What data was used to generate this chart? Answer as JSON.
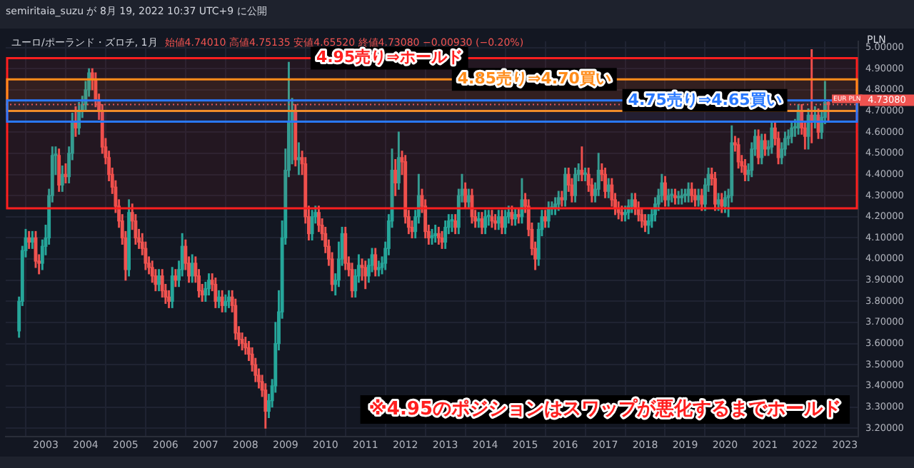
{
  "chart_data": {
    "type": "candlestick",
    "title": "ユーロ/ポーランド・ズロチ, 1月",
    "subtitle": "始値4.74010 高値4.75135 安値4.65520 終値4.73080 −0.00930 (−0.20%)",
    "ylabel": "PLN",
    "colors": [
      "#26a69a",
      "#ef5350"
    ],
    "xlim": [
      "2002-01",
      "2023-05"
    ],
    "xticks": [
      "2003",
      "2004",
      "2005",
      "2006",
      "2007",
      "2008",
      "2009",
      "2010",
      "2011",
      "2012",
      "2013",
      "2014",
      "2015",
      "2016",
      "2017",
      "2018",
      "2019",
      "2020",
      "2021",
      "2022",
      "2023"
    ],
    "ylim": [
      3.16,
      5.03
    ],
    "yticks": [
      {
        "value": 3.2,
        "label": "3.20000"
      },
      {
        "value": 3.3,
        "label": "3.30000"
      },
      {
        "value": 3.4,
        "label": "3.40000"
      },
      {
        "value": 3.5,
        "label": "3.50000"
      },
      {
        "value": 3.6,
        "label": "3.60000"
      },
      {
        "value": 3.7,
        "label": "3.70000"
      },
      {
        "value": 3.8,
        "label": "3.80000"
      },
      {
        "value": 3.9,
        "label": "3.90000"
      },
      {
        "value": 4.0,
        "label": "4.00000"
      },
      {
        "value": 4.1,
        "label": "4.10000"
      },
      {
        "value": 4.2,
        "label": "4.20000"
      },
      {
        "value": 4.3,
        "label": "4.30000"
      },
      {
        "value": 4.4,
        "label": "4.40000"
      },
      {
        "value": 4.5,
        "label": "4.50000"
      },
      {
        "value": 4.6,
        "label": "4.60000"
      },
      {
        "value": 4.7,
        "label": "4.70000"
      },
      {
        "value": 4.8,
        "label": "4.80000"
      },
      {
        "value": 4.9,
        "label": "4.90000"
      },
      {
        "value": 5.0,
        "label": "5.00000"
      }
    ],
    "grid": true,
    "bands": [
      {
        "axis": "y",
        "from": 4.24,
        "to": 4.95,
        "label": "4.95売り⇒ホールド",
        "color": "#ff1f1f"
      },
      {
        "axis": "y",
        "from": 4.7,
        "to": 4.85,
        "label": "4.85売り⇒4.70買い",
        "color": "#ff8c1a"
      },
      {
        "axis": "y",
        "from": 4.65,
        "to": 4.75,
        "label": "4.75売り⇒4.65買い",
        "color": "#2979ff"
      }
    ],
    "ref_lines": [
      {
        "axis": "y",
        "value": 4.7308,
        "label": "4.73080",
        "color": "#ef5350",
        "line_style": "dotted"
      }
    ],
    "annotations": [
      "semiritaia_suzu が 8月 19, 2022 10:37 UTC+9 に公開",
      "※4.95のポジションはスワップが悪化するまでホールド",
      "EUR PLN"
    ],
    "series": [
      {
        "x": [
          "2002-05",
          "2002-06",
          "2002-07",
          "2002-08",
          "2002-09",
          "2002-10",
          "2002-11",
          "2002-12",
          "2003-01",
          "2003-02",
          "2003-03",
          "2003-04",
          "2003-05",
          "2003-06",
          "2003-07",
          "2003-08",
          "2003-09",
          "2003-10",
          "2003-11",
          "2003-12",
          "2004-01",
          "2004-02",
          "2004-03",
          "2004-04",
          "2004-05",
          "2004-06",
          "2004-07",
          "2004-08",
          "2004-09",
          "2004-10",
          "2004-11",
          "2004-12",
          "2005-01",
          "2005-02",
          "2005-03",
          "2005-04",
          "2005-05",
          "2005-06",
          "2005-07",
          "2005-08",
          "2005-09",
          "2005-10",
          "2005-11",
          "2005-12",
          "2006-01",
          "2006-02",
          "2006-03",
          "2006-04",
          "2006-05",
          "2006-06",
          "2006-07",
          "2006-08",
          "2006-09",
          "2006-10",
          "2006-11",
          "2006-12",
          "2007-01",
          "2007-02",
          "2007-03",
          "2007-04",
          "2007-05",
          "2007-06",
          "2007-07",
          "2007-08",
          "2007-09",
          "2007-10",
          "2007-11",
          "2007-12",
          "2008-01",
          "2008-02",
          "2008-03",
          "2008-04",
          "2008-05",
          "2008-06",
          "2008-07",
          "2008-08",
          "2008-09",
          "2008-10",
          "2008-11",
          "2008-12",
          "2009-01",
          "2009-02",
          "2009-03",
          "2009-04",
          "2009-05",
          "2009-06",
          "2009-07",
          "2009-08",
          "2009-09",
          "2009-10",
          "2009-11",
          "2009-12",
          "2010-01",
          "2010-02",
          "2010-03",
          "2010-04",
          "2010-05",
          "2010-06",
          "2010-07",
          "2010-08",
          "2010-09",
          "2010-10",
          "2010-11",
          "2010-12",
          "2011-01",
          "2011-02",
          "2011-03",
          "2011-04",
          "2011-05",
          "2011-06",
          "2011-07",
          "2011-08",
          "2011-09",
          "2011-10",
          "2011-11",
          "2011-12",
          "2012-01",
          "2012-02",
          "2012-03",
          "2012-04",
          "2012-05",
          "2012-06",
          "2012-07",
          "2012-08",
          "2012-09",
          "2012-10",
          "2012-11",
          "2012-12",
          "2013-01",
          "2013-02",
          "2013-03",
          "2013-04",
          "2013-05",
          "2013-06",
          "2013-07",
          "2013-08",
          "2013-09",
          "2013-10",
          "2013-11",
          "2013-12",
          "2014-01",
          "2014-02",
          "2014-03",
          "2014-04",
          "2014-05",
          "2014-06",
          "2014-07",
          "2014-08",
          "2014-09",
          "2014-10",
          "2014-11",
          "2014-12",
          "2015-01",
          "2015-02",
          "2015-03",
          "2015-04",
          "2015-05",
          "2015-06",
          "2015-07",
          "2015-08",
          "2015-09",
          "2015-10",
          "2015-11",
          "2015-12",
          "2016-01",
          "2016-02",
          "2016-03",
          "2016-04",
          "2016-05",
          "2016-06",
          "2016-07",
          "2016-08",
          "2016-09",
          "2016-10",
          "2016-11",
          "2016-12",
          "2017-01",
          "2017-02",
          "2017-03",
          "2017-04",
          "2017-05",
          "2017-06",
          "2017-07",
          "2017-08",
          "2017-09",
          "2017-10",
          "2017-11",
          "2017-12",
          "2018-01",
          "2018-02",
          "2018-03",
          "2018-04",
          "2018-05",
          "2018-06",
          "2018-07",
          "2018-08",
          "2018-09",
          "2018-10",
          "2018-11",
          "2018-12",
          "2019-01",
          "2019-02",
          "2019-03",
          "2019-04",
          "2019-05",
          "2019-06",
          "2019-07",
          "2019-08",
          "2019-09",
          "2019-10",
          "2019-11",
          "2019-12",
          "2020-01",
          "2020-02",
          "2020-03",
          "2020-04",
          "2020-05",
          "2020-06",
          "2020-07",
          "2020-08",
          "2020-09",
          "2020-10",
          "2020-11",
          "2020-12",
          "2021-01",
          "2021-02",
          "2021-03",
          "2021-04",
          "2021-05",
          "2021-06",
          "2021-07",
          "2021-08",
          "2021-09",
          "2021-10",
          "2021-11",
          "2021-12",
          "2022-01",
          "2022-02",
          "2022-03",
          "2022-04",
          "2022-05",
          "2022-06",
          "2022-07",
          "2022-08"
        ],
        "ohlc": [
          [
            3.66,
            3.82,
            3.63,
            3.8
          ],
          [
            3.8,
            4.06,
            3.78,
            4.04
          ],
          [
            4.04,
            4.14,
            4.01,
            4.1
          ],
          [
            4.1,
            4.13,
            4.05,
            4.08
          ],
          [
            4.08,
            4.13,
            4.05,
            4.1
          ],
          [
            4.1,
            4.13,
            3.96,
            3.99
          ],
          [
            3.99,
            4.02,
            3.93,
            3.98
          ],
          [
            3.98,
            4.09,
            3.95,
            4.06
          ],
          [
            4.06,
            4.16,
            4.02,
            4.1
          ],
          [
            4.1,
            4.33,
            4.07,
            4.3
          ],
          [
            4.3,
            4.53,
            4.27,
            4.49
          ],
          [
            4.49,
            4.53,
            4.4,
            4.49
          ],
          [
            4.49,
            4.52,
            4.32,
            4.35
          ],
          [
            4.35,
            4.44,
            4.32,
            4.4
          ],
          [
            4.4,
            4.45,
            4.36,
            4.39
          ],
          [
            4.39,
            4.53,
            4.36,
            4.5
          ],
          [
            4.5,
            4.69,
            4.47,
            4.65
          ],
          [
            4.65,
            4.72,
            4.58,
            4.62
          ],
          [
            4.62,
            4.74,
            4.59,
            4.7
          ],
          [
            4.7,
            4.77,
            4.67,
            4.73
          ],
          [
            4.73,
            4.84,
            4.7,
            4.8
          ],
          [
            4.8,
            4.9,
            4.77,
            4.88
          ],
          [
            4.88,
            4.9,
            4.8,
            4.85
          ],
          [
            4.85,
            4.88,
            4.72,
            4.75
          ],
          [
            4.75,
            4.78,
            4.66,
            4.7
          ],
          [
            4.7,
            4.73,
            4.5,
            4.53
          ],
          [
            4.53,
            4.57,
            4.45,
            4.48
          ],
          [
            4.48,
            4.51,
            4.37,
            4.4
          ],
          [
            4.4,
            4.43,
            4.31,
            4.34
          ],
          [
            4.34,
            4.37,
            4.22,
            4.25
          ],
          [
            4.25,
            4.28,
            4.15,
            4.18
          ],
          [
            4.18,
            4.21,
            4.07,
            4.1
          ],
          [
            4.1,
            4.13,
            3.9,
            3.95
          ],
          [
            3.95,
            4.28,
            3.92,
            4.22
          ],
          [
            4.22,
            4.26,
            4.14,
            4.18
          ],
          [
            4.18,
            4.21,
            4.07,
            4.1
          ],
          [
            4.1,
            4.14,
            4.05,
            4.08
          ],
          [
            4.08,
            4.12,
            4.02,
            4.05
          ],
          [
            4.05,
            4.08,
            3.95,
            3.98
          ],
          [
            3.98,
            4.01,
            3.93,
            3.96
          ],
          [
            3.96,
            3.99,
            3.89,
            3.92
          ],
          [
            3.92,
            3.95,
            3.85,
            3.88
          ],
          [
            3.88,
            3.95,
            3.85,
            3.92
          ],
          [
            3.92,
            3.95,
            3.82,
            3.85
          ],
          [
            3.85,
            3.88,
            3.79,
            3.82
          ],
          [
            3.82,
            3.85,
            3.77,
            3.8
          ],
          [
            3.8,
            3.96,
            3.77,
            3.92
          ],
          [
            3.92,
            3.95,
            3.87,
            3.9
          ],
          [
            3.9,
            3.99,
            3.87,
            3.95
          ],
          [
            3.95,
            4.12,
            3.92,
            4.06
          ],
          [
            4.06,
            4.09,
            3.95,
            3.98
          ],
          [
            3.98,
            4.01,
            3.89,
            3.92
          ],
          [
            3.92,
            4.02,
            3.89,
            3.98
          ],
          [
            3.98,
            4.01,
            3.89,
            3.92
          ],
          [
            3.92,
            3.95,
            3.82,
            3.85
          ],
          [
            3.85,
            3.88,
            3.8,
            3.83
          ],
          [
            3.83,
            3.89,
            3.8,
            3.86
          ],
          [
            3.86,
            3.93,
            3.83,
            3.9
          ],
          [
            3.9,
            3.93,
            3.85,
            3.88
          ],
          [
            3.88,
            3.91,
            3.77,
            3.8
          ],
          [
            3.8,
            3.85,
            3.77,
            3.82
          ],
          [
            3.82,
            3.85,
            3.75,
            3.78
          ],
          [
            3.78,
            3.83,
            3.75,
            3.8
          ],
          [
            3.8,
            3.85,
            3.77,
            3.82
          ],
          [
            3.82,
            3.85,
            3.75,
            3.78
          ],
          [
            3.78,
            3.81,
            3.62,
            3.65
          ],
          [
            3.65,
            3.68,
            3.59,
            3.62
          ],
          [
            3.62,
            3.65,
            3.57,
            3.6
          ],
          [
            3.6,
            3.63,
            3.55,
            3.58
          ],
          [
            3.58,
            3.61,
            3.52,
            3.55
          ],
          [
            3.55,
            3.58,
            3.47,
            3.5
          ],
          [
            3.5,
            3.53,
            3.42,
            3.45
          ],
          [
            3.45,
            3.48,
            3.39,
            3.42
          ],
          [
            3.42,
            3.45,
            3.35,
            3.38
          ],
          [
            3.38,
            3.41,
            3.2,
            3.28
          ],
          [
            3.28,
            3.36,
            3.25,
            3.33
          ],
          [
            3.33,
            3.43,
            3.3,
            3.4
          ],
          [
            3.4,
            3.7,
            3.37,
            3.6
          ],
          [
            3.6,
            3.85,
            3.57,
            3.75
          ],
          [
            3.75,
            4.18,
            3.72,
            4.1
          ],
          [
            4.1,
            4.52,
            4.07,
            4.42
          ],
          [
            4.42,
            4.93,
            4.39,
            4.65
          ],
          [
            4.65,
            4.76,
            4.45,
            4.7
          ],
          [
            4.7,
            4.73,
            4.44,
            4.47
          ],
          [
            4.47,
            4.55,
            4.4,
            4.48
          ],
          [
            4.48,
            4.51,
            4.4,
            4.45
          ],
          [
            4.45,
            4.48,
            4.17,
            4.2
          ],
          [
            4.2,
            4.25,
            4.09,
            4.12
          ],
          [
            4.12,
            4.23,
            4.09,
            4.2
          ],
          [
            4.2,
            4.25,
            4.17,
            4.22
          ],
          [
            4.22,
            4.25,
            4.13,
            4.16
          ],
          [
            4.16,
            4.19,
            4.09,
            4.12
          ],
          [
            4.12,
            4.15,
            4.03,
            4.06
          ],
          [
            4.06,
            4.09,
            3.97,
            4.0
          ],
          [
            4.0,
            4.03,
            3.85,
            3.88
          ],
          [
            3.88,
            3.93,
            3.83,
            3.9
          ],
          [
            3.9,
            4.08,
            3.87,
            4.0
          ],
          [
            4.0,
            4.15,
            3.97,
            4.12
          ],
          [
            4.12,
            4.15,
            3.95,
            3.98
          ],
          [
            3.98,
            4.01,
            3.92,
            3.95
          ],
          [
            3.95,
            3.98,
            3.82,
            3.85
          ],
          [
            3.85,
            3.95,
            3.82,
            3.92
          ],
          [
            3.92,
            4.02,
            3.89,
            3.97
          ],
          [
            3.97,
            4.0,
            3.9,
            3.96
          ],
          [
            3.96,
            3.99,
            3.86,
            3.92
          ],
          [
            3.92,
            4.0,
            3.89,
            3.97
          ],
          [
            3.97,
            4.05,
            3.94,
            4.02
          ],
          [
            4.02,
            4.05,
            3.92,
            3.95
          ],
          [
            3.95,
            3.99,
            3.92,
            3.96
          ],
          [
            3.96,
            4.01,
            3.93,
            3.98
          ],
          [
            3.98,
            4.08,
            3.95,
            4.05
          ],
          [
            4.05,
            4.21,
            4.02,
            4.18
          ],
          [
            4.18,
            4.52,
            4.15,
            4.42
          ],
          [
            4.42,
            4.47,
            4.3,
            4.36
          ],
          [
            4.36,
            4.6,
            4.33,
            4.48
          ],
          [
            4.48,
            4.51,
            4.4,
            4.46
          ],
          [
            4.46,
            4.49,
            4.17,
            4.2
          ],
          [
            4.2,
            4.23,
            4.12,
            4.15
          ],
          [
            4.15,
            4.18,
            4.1,
            4.13
          ],
          [
            4.13,
            4.23,
            4.1,
            4.2
          ],
          [
            4.2,
            4.4,
            4.17,
            4.3
          ],
          [
            4.3,
            4.33,
            4.22,
            4.25
          ],
          [
            4.25,
            4.28,
            4.1,
            4.13
          ],
          [
            4.13,
            4.16,
            4.07,
            4.1
          ],
          [
            4.1,
            4.14,
            4.07,
            4.11
          ],
          [
            4.11,
            4.16,
            4.08,
            4.12
          ],
          [
            4.12,
            4.15,
            4.07,
            4.1
          ],
          [
            4.1,
            4.13,
            4.05,
            4.08
          ],
          [
            4.08,
            4.18,
            4.05,
            4.15
          ],
          [
            4.15,
            4.21,
            4.12,
            4.18
          ],
          [
            4.18,
            4.21,
            4.13,
            4.18
          ],
          [
            4.18,
            4.21,
            4.12,
            4.15
          ],
          [
            4.15,
            4.33,
            4.12,
            4.3
          ],
          [
            4.3,
            4.4,
            4.27,
            4.33
          ],
          [
            4.33,
            4.36,
            4.24,
            4.27
          ],
          [
            4.27,
            4.33,
            4.24,
            4.3
          ],
          [
            4.3,
            4.33,
            4.17,
            4.2
          ],
          [
            4.2,
            4.23,
            4.15,
            4.18
          ],
          [
            4.18,
            4.22,
            4.15,
            4.19
          ],
          [
            4.19,
            4.22,
            4.12,
            4.15
          ],
          [
            4.15,
            4.23,
            4.12,
            4.2
          ],
          [
            4.2,
            4.23,
            4.16,
            4.2
          ],
          [
            4.2,
            4.23,
            4.15,
            4.18
          ],
          [
            4.18,
            4.21,
            4.14,
            4.17
          ],
          [
            4.17,
            4.23,
            4.14,
            4.2
          ],
          [
            4.2,
            4.23,
            4.12,
            4.15
          ],
          [
            4.15,
            4.23,
            4.12,
            4.2
          ],
          [
            4.2,
            4.25,
            4.17,
            4.22
          ],
          [
            4.22,
            4.25,
            4.16,
            4.19
          ],
          [
            4.19,
            4.24,
            4.16,
            4.21
          ],
          [
            4.21,
            4.24,
            4.17,
            4.2
          ],
          [
            4.2,
            4.38,
            4.17,
            4.28
          ],
          [
            4.28,
            4.31,
            4.22,
            4.25
          ],
          [
            4.25,
            4.28,
            4.11,
            4.14
          ],
          [
            4.14,
            4.17,
            4.02,
            4.05
          ],
          [
            4.05,
            4.08,
            3.95,
            4.0
          ],
          [
            4.0,
            4.17,
            3.97,
            4.14
          ],
          [
            4.14,
            4.23,
            4.11,
            4.2
          ],
          [
            4.2,
            4.23,
            4.15,
            4.18
          ],
          [
            4.18,
            4.27,
            4.15,
            4.24
          ],
          [
            4.24,
            4.27,
            4.21,
            4.24
          ],
          [
            4.24,
            4.29,
            4.21,
            4.26
          ],
          [
            4.26,
            4.32,
            4.23,
            4.29
          ],
          [
            4.29,
            4.32,
            4.25,
            4.28
          ],
          [
            4.28,
            4.43,
            4.25,
            4.4
          ],
          [
            4.4,
            4.43,
            4.32,
            4.35
          ],
          [
            4.35,
            4.38,
            4.27,
            4.3
          ],
          [
            4.3,
            4.43,
            4.27,
            4.4
          ],
          [
            4.4,
            4.45,
            4.37,
            4.42
          ],
          [
            4.42,
            4.53,
            4.37,
            4.4
          ],
          [
            4.4,
            4.43,
            4.37,
            4.4
          ],
          [
            4.4,
            4.43,
            4.32,
            4.35
          ],
          [
            4.35,
            4.38,
            4.27,
            4.3
          ],
          [
            4.3,
            4.36,
            4.27,
            4.33
          ],
          [
            4.33,
            4.5,
            4.3,
            4.42
          ],
          [
            4.42,
            4.45,
            4.37,
            4.4
          ],
          [
            4.4,
            4.43,
            4.29,
            4.32
          ],
          [
            4.32,
            4.38,
            4.29,
            4.35
          ],
          [
            4.35,
            4.38,
            4.25,
            4.28
          ],
          [
            4.28,
            4.31,
            4.21,
            4.24
          ],
          [
            4.24,
            4.27,
            4.19,
            4.22
          ],
          [
            4.22,
            4.25,
            4.18,
            4.21
          ],
          [
            4.21,
            4.25,
            4.18,
            4.22
          ],
          [
            4.22,
            4.28,
            4.19,
            4.25
          ],
          [
            4.25,
            4.31,
            4.22,
            4.28
          ],
          [
            4.28,
            4.31,
            4.21,
            4.24
          ],
          [
            4.24,
            4.27,
            4.18,
            4.21
          ],
          [
            4.21,
            4.24,
            4.15,
            4.18
          ],
          [
            4.18,
            4.21,
            4.13,
            4.16
          ],
          [
            4.16,
            4.21,
            4.12,
            4.18
          ],
          [
            4.18,
            4.24,
            4.15,
            4.21
          ],
          [
            4.21,
            4.29,
            4.18,
            4.26
          ],
          [
            4.26,
            4.33,
            4.23,
            4.3
          ],
          [
            4.3,
            4.4,
            4.27,
            4.36
          ],
          [
            4.36,
            4.39,
            4.25,
            4.28
          ],
          [
            4.28,
            4.33,
            4.25,
            4.3
          ],
          [
            4.3,
            4.33,
            4.27,
            4.3
          ],
          [
            4.3,
            4.33,
            4.26,
            4.29
          ],
          [
            4.29,
            4.32,
            4.26,
            4.29
          ],
          [
            4.29,
            4.33,
            4.26,
            4.3
          ],
          [
            4.3,
            4.33,
            4.27,
            4.3
          ],
          [
            4.3,
            4.36,
            4.27,
            4.33
          ],
          [
            4.33,
            4.36,
            4.27,
            4.3
          ],
          [
            4.3,
            4.33,
            4.25,
            4.28
          ],
          [
            4.28,
            4.33,
            4.25,
            4.3
          ],
          [
            4.3,
            4.33,
            4.23,
            4.26
          ],
          [
            4.26,
            4.38,
            4.23,
            4.35
          ],
          [
            4.35,
            4.43,
            4.32,
            4.4
          ],
          [
            4.4,
            4.43,
            4.35,
            4.38
          ],
          [
            4.38,
            4.41,
            4.23,
            4.26
          ],
          [
            4.26,
            4.31,
            4.23,
            4.28
          ],
          [
            4.28,
            4.31,
            4.22,
            4.25
          ],
          [
            4.25,
            4.32,
            4.22,
            4.29
          ],
          [
            4.29,
            4.33,
            4.2,
            4.3
          ],
          [
            4.3,
            4.63,
            4.27,
            4.55
          ],
          [
            4.55,
            4.58,
            4.51,
            4.54
          ],
          [
            4.54,
            4.57,
            4.43,
            4.46
          ],
          [
            4.46,
            4.49,
            4.41,
            4.44
          ],
          [
            4.44,
            4.47,
            4.37,
            4.4
          ],
          [
            4.4,
            4.45,
            4.37,
            4.42
          ],
          [
            4.42,
            4.55,
            4.39,
            4.52
          ],
          [
            4.52,
            4.61,
            4.49,
            4.58
          ],
          [
            4.58,
            4.61,
            4.45,
            4.48
          ],
          [
            4.48,
            4.59,
            4.45,
            4.56
          ],
          [
            4.56,
            4.59,
            4.49,
            4.52
          ],
          [
            4.52,
            4.56,
            4.49,
            4.53
          ],
          [
            4.53,
            4.65,
            4.5,
            4.62
          ],
          [
            4.62,
            4.65,
            4.54,
            4.57
          ],
          [
            4.57,
            4.6,
            4.45,
            4.48
          ],
          [
            4.48,
            4.55,
            4.45,
            4.52
          ],
          [
            4.52,
            4.6,
            4.49,
            4.57
          ],
          [
            4.57,
            4.61,
            4.54,
            4.58
          ],
          [
            4.58,
            4.65,
            4.55,
            4.62
          ],
          [
            4.62,
            4.66,
            4.58,
            4.62
          ],
          [
            4.62,
            4.73,
            4.59,
            4.7
          ],
          [
            4.7,
            4.73,
            4.59,
            4.62
          ],
          [
            4.62,
            4.65,
            4.52,
            4.58
          ],
          [
            4.58,
            4.71,
            4.52,
            4.68
          ],
          [
            4.68,
            4.99,
            4.55,
            4.65
          ],
          [
            4.65,
            4.72,
            4.62,
            4.68
          ],
          [
            4.68,
            4.71,
            4.57,
            4.6
          ],
          [
            4.6,
            4.7,
            4.57,
            4.67
          ],
          [
            4.67,
            4.84,
            4.64,
            4.7401
          ],
          [
            4.7401,
            4.75135,
            4.6552,
            4.7308
          ]
        ]
      }
    ]
  }
}
